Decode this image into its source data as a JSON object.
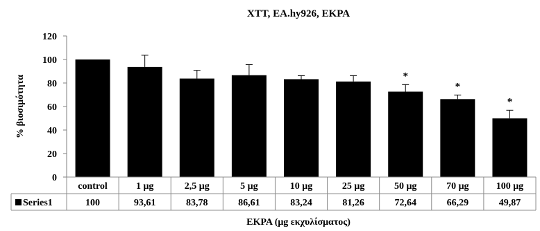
{
  "chart_data": {
    "type": "bar",
    "title": "XTT, EA.hy926, EKPA",
    "ylabel": "% βιοσιμότητα",
    "xlabel": "EKPA (μg εκχυλίσματος)",
    "ylim": [
      0,
      120
    ],
    "yticks": [
      0,
      20,
      40,
      60,
      80,
      100,
      120
    ],
    "categories": [
      "control",
      "1 μg",
      "2,5 μg",
      "5 μg",
      "10 μg",
      "25 μg",
      "50 μg",
      "70 μg",
      "100 μg"
    ],
    "series": [
      {
        "name": "Series1",
        "color": "#000000",
        "values": [
          100,
          93.61,
          83.78,
          86.61,
          83.24,
          81.26,
          72.64,
          66.29,
          49.87
        ],
        "value_labels": [
          "100",
          "93,61",
          "83,78",
          "86,61",
          "83,24",
          "81,26",
          "72,64",
          "66,29",
          "49,87"
        ],
        "error": [
          0,
          10,
          7,
          9,
          3,
          5,
          6,
          3.5,
          7
        ]
      }
    ],
    "significance": [
      "",
      "",
      "",
      "",
      "",
      "",
      "*",
      "*",
      "*"
    ],
    "grid": false,
    "legend": "data-table-left"
  }
}
